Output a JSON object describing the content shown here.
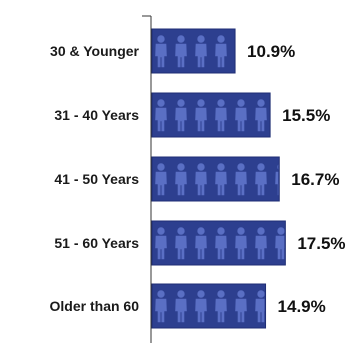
{
  "chart_data": {
    "type": "bar",
    "orientation": "horizontal",
    "categories": [
      "30 & Younger",
      "31 - 40 Years",
      "41 - 50 Years",
      "51 - 60 Years",
      "Older than 60"
    ],
    "values": [
      10.9,
      15.5,
      16.7,
      17.5,
      14.9
    ],
    "value_labels": [
      "10.9%",
      "15.5%",
      "16.7%",
      "17.5%",
      "14.9%"
    ],
    "value_unit": "%",
    "title": "",
    "xlabel": "",
    "ylabel": "",
    "grid": false,
    "legend": "none",
    "bar_style": "pictogram",
    "bar_icon": "person-icon",
    "colors": {
      "bar": "#2d3f8f",
      "bar_border": "#1f2e74",
      "icon": "#5a6fc4",
      "axis": "#333333"
    }
  }
}
